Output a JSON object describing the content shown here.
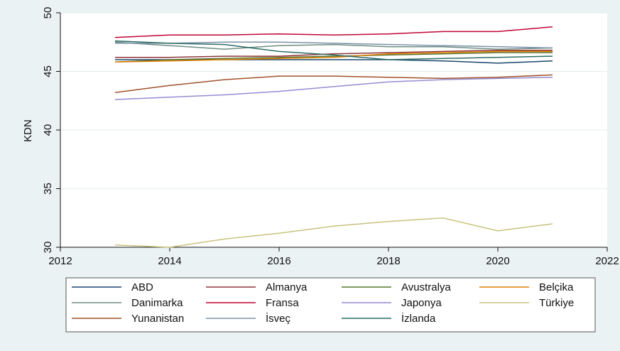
{
  "chart_data": {
    "type": "line",
    "title": "",
    "xlabel": "",
    "ylabel": "KDN",
    "xlim": [
      2012,
      2022
    ],
    "ylim": [
      30,
      50
    ],
    "xticks": [
      2012,
      2014,
      2016,
      2018,
      2020,
      2022
    ],
    "yticks": [
      30,
      35,
      40,
      45,
      50
    ],
    "grid": true,
    "legend_position": "bottom",
    "x": [
      2013,
      2014,
      2015,
      2016,
      2017,
      2018,
      2019,
      2020,
      2021
    ],
    "series": [
      {
        "name": "ABD",
        "color": "#1a476f",
        "values": [
          46.0,
          46.0,
          46.0,
          46.0,
          46.0,
          46.0,
          45.9,
          45.7,
          45.9
        ]
      },
      {
        "name": "Almanya",
        "color": "#90353b",
        "values": [
          46.2,
          46.2,
          46.3,
          46.3,
          46.5,
          46.6,
          46.7,
          46.8,
          46.8
        ]
      },
      {
        "name": "Avustralya",
        "color": "#55752f",
        "values": [
          45.8,
          46.0,
          46.1,
          46.2,
          46.3,
          46.4,
          46.5,
          46.6,
          46.6
        ]
      },
      {
        "name": "Belçika",
        "color": "#e37e00",
        "values": [
          45.8,
          45.9,
          46.0,
          46.1,
          46.2,
          46.5,
          46.6,
          46.7,
          46.7
        ]
      },
      {
        "name": "Danimarka",
        "color": "#6e8e84",
        "values": [
          47.5,
          47.2,
          46.9,
          47.2,
          47.3,
          47.1,
          47.1,
          46.9,
          47.0
        ]
      },
      {
        "name": "Fransa",
        "color": "#c10534",
        "values": [
          47.9,
          48.1,
          48.1,
          48.2,
          48.1,
          48.2,
          48.4,
          48.4,
          48.8
        ]
      },
      {
        "name": "Japonya",
        "color": "#938dd2",
        "values": [
          42.6,
          42.8,
          43.0,
          43.3,
          43.7,
          44.1,
          44.3,
          44.4,
          44.5
        ]
      },
      {
        "name": "Türkiye",
        "color": "#cac27e",
        "values": [
          30.2,
          30.0,
          30.7,
          31.2,
          31.8,
          32.2,
          32.5,
          31.4,
          32.0
        ]
      },
      {
        "name": "Yunanistan",
        "color": "#a0522d",
        "values": [
          43.2,
          43.8,
          44.3,
          44.6,
          44.6,
          44.5,
          44.4,
          44.5,
          44.7
        ]
      },
      {
        "name": "İsveç",
        "color": "#7b92a8",
        "values": [
          47.4,
          47.4,
          47.5,
          47.5,
          47.4,
          47.3,
          47.2,
          47.1,
          47.0
        ]
      },
      {
        "name": "İzlanda",
        "color": "#2d6d66",
        "values": [
          47.6,
          47.4,
          47.3,
          46.7,
          46.4,
          46.0,
          46.1,
          46.2,
          46.3
        ]
      }
    ]
  }
}
